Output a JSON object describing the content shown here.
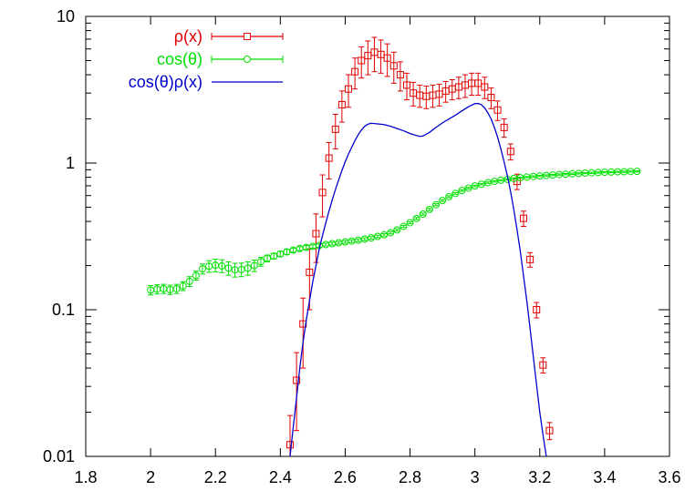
{
  "chart_data": {
    "type": "line",
    "title": "",
    "xlabel": "",
    "ylabel": "",
    "xlim": [
      1.8,
      3.6
    ],
    "ylim": [
      0.01,
      10
    ],
    "yscale": "log",
    "grid": false,
    "legend_position": "top-left",
    "x_ticks": [
      {
        "value": 1.8,
        "label": "1.8"
      },
      {
        "value": 2.0,
        "label": "2"
      },
      {
        "value": 2.2,
        "label": "2.2"
      },
      {
        "value": 2.4,
        "label": "2.4"
      },
      {
        "value": 2.6,
        "label": "2.6"
      },
      {
        "value": 2.8,
        "label": "2.8"
      },
      {
        "value": 3.0,
        "label": "3"
      },
      {
        "value": 3.2,
        "label": "3.2"
      },
      {
        "value": 3.4,
        "label": "3.4"
      },
      {
        "value": 3.6,
        "label": "3.6"
      }
    ],
    "y_ticks": [
      {
        "value": 0.01,
        "label": "0.01"
      },
      {
        "value": 0.1,
        "label": "0.1"
      },
      {
        "value": 1,
        "label": "1"
      },
      {
        "value": 10,
        "label": "10"
      }
    ],
    "series": [
      {
        "name": "ρ(x)",
        "color": "#e00000",
        "marker": "square",
        "points": [
          [
            2.43,
            0.012,
            0.007
          ],
          [
            2.45,
            0.033,
            0.018
          ],
          [
            2.47,
            0.08,
            0.04
          ],
          [
            2.49,
            0.18,
            0.08
          ],
          [
            2.51,
            0.33,
            0.12
          ],
          [
            2.53,
            0.63,
            0.2
          ],
          [
            2.55,
            1.08,
            0.3
          ],
          [
            2.57,
            1.7,
            0.45
          ],
          [
            2.59,
            2.5,
            0.6
          ],
          [
            2.61,
            3.2,
            0.8
          ],
          [
            2.63,
            4.2,
            1.0
          ],
          [
            2.65,
            5.0,
            1.2
          ],
          [
            2.67,
            5.4,
            1.4
          ],
          [
            2.69,
            5.7,
            1.5
          ],
          [
            2.71,
            5.5,
            1.4
          ],
          [
            2.73,
            5.2,
            1.3
          ],
          [
            2.75,
            4.6,
            1.1
          ],
          [
            2.77,
            4.0,
            0.9
          ],
          [
            2.79,
            3.4,
            0.7
          ],
          [
            2.81,
            3.0,
            0.55
          ],
          [
            2.83,
            2.9,
            0.5
          ],
          [
            2.85,
            2.85,
            0.5
          ],
          [
            2.87,
            2.9,
            0.5
          ],
          [
            2.89,
            2.95,
            0.5
          ],
          [
            2.91,
            3.1,
            0.5
          ],
          [
            2.93,
            3.2,
            0.5
          ],
          [
            2.95,
            3.3,
            0.55
          ],
          [
            2.97,
            3.4,
            0.6
          ],
          [
            2.99,
            3.5,
            0.6
          ],
          [
            3.01,
            3.5,
            0.6
          ],
          [
            3.03,
            3.3,
            0.55
          ],
          [
            3.05,
            2.8,
            0.45
          ],
          [
            3.07,
            2.3,
            0.35
          ],
          [
            3.09,
            1.75,
            0.25
          ],
          [
            3.11,
            1.2,
            0.15
          ],
          [
            3.13,
            0.75,
            0.09
          ],
          [
            3.15,
            0.42,
            0.05
          ],
          [
            3.17,
            0.22,
            0.025
          ],
          [
            3.19,
            0.1,
            0.012
          ],
          [
            3.21,
            0.042,
            0.005
          ],
          [
            3.23,
            0.015,
            0.002
          ]
        ]
      },
      {
        "name": "cos(θ)",
        "color": "#00e000",
        "marker": "circle",
        "points": [
          [
            2.0,
            0.136,
            0.01
          ],
          [
            2.02,
            0.138,
            0.01
          ],
          [
            2.04,
            0.139,
            0.01
          ],
          [
            2.06,
            0.137,
            0.01
          ],
          [
            2.08,
            0.139,
            0.01
          ],
          [
            2.1,
            0.145,
            0.01
          ],
          [
            2.12,
            0.156,
            0.012
          ],
          [
            2.14,
            0.171,
            0.012
          ],
          [
            2.16,
            0.19,
            0.015
          ],
          [
            2.18,
            0.198,
            0.018
          ],
          [
            2.2,
            0.201,
            0.02
          ],
          [
            2.22,
            0.199,
            0.02
          ],
          [
            2.24,
            0.192,
            0.02
          ],
          [
            2.26,
            0.187,
            0.02
          ],
          [
            2.28,
            0.188,
            0.02
          ],
          [
            2.3,
            0.192,
            0.02
          ],
          [
            2.32,
            0.2,
            0.018
          ],
          [
            2.34,
            0.213,
            0.015
          ],
          [
            2.36,
            0.224,
            0.012
          ],
          [
            2.38,
            0.232,
            0.01
          ],
          [
            2.4,
            0.24,
            0.01
          ],
          [
            2.42,
            0.248,
            0.01
          ],
          [
            2.44,
            0.255,
            0.008
          ],
          [
            2.46,
            0.261,
            0.008
          ],
          [
            2.48,
            0.266,
            0.008
          ],
          [
            2.5,
            0.27,
            0.007
          ],
          [
            2.52,
            0.274,
            0.007
          ],
          [
            2.54,
            0.278,
            0.006
          ],
          [
            2.56,
            0.282,
            0.006
          ],
          [
            2.58,
            0.286,
            0.006
          ],
          [
            2.6,
            0.29,
            0.006
          ],
          [
            2.62,
            0.294,
            0.006
          ],
          [
            2.64,
            0.298,
            0.006
          ],
          [
            2.66,
            0.303,
            0.006
          ],
          [
            2.68,
            0.309,
            0.006
          ],
          [
            2.7,
            0.316,
            0.006
          ],
          [
            2.72,
            0.324,
            0.006
          ],
          [
            2.74,
            0.335,
            0.006
          ],
          [
            2.76,
            0.35,
            0.006
          ],
          [
            2.78,
            0.37,
            0.006
          ],
          [
            2.8,
            0.392,
            0.006
          ],
          [
            2.82,
            0.419,
            0.007
          ],
          [
            2.84,
            0.449,
            0.007
          ],
          [
            2.86,
            0.483,
            0.008
          ],
          [
            2.88,
            0.52,
            0.008
          ],
          [
            2.9,
            0.555,
            0.008
          ],
          [
            2.92,
            0.59,
            0.008
          ],
          [
            2.94,
            0.62,
            0.008
          ],
          [
            2.96,
            0.65,
            0.008
          ],
          [
            2.98,
            0.675,
            0.008
          ],
          [
            3.0,
            0.698,
            0.008
          ],
          [
            3.02,
            0.717,
            0.008
          ],
          [
            3.04,
            0.735,
            0.008
          ],
          [
            3.06,
            0.75,
            0.008
          ],
          [
            3.08,
            0.763,
            0.008
          ],
          [
            3.1,
            0.775,
            0.008
          ],
          [
            3.12,
            0.785,
            0.008
          ],
          [
            3.14,
            0.794,
            0.008
          ],
          [
            3.16,
            0.802,
            0.008
          ],
          [
            3.18,
            0.81,
            0.008
          ],
          [
            3.2,
            0.817,
            0.008
          ],
          [
            3.22,
            0.823,
            0.008
          ],
          [
            3.24,
            0.829,
            0.008
          ],
          [
            3.26,
            0.835,
            0.008
          ],
          [
            3.28,
            0.84,
            0.008
          ],
          [
            3.3,
            0.845,
            0.008
          ],
          [
            3.32,
            0.85,
            0.008
          ],
          [
            3.34,
            0.854,
            0.008
          ],
          [
            3.36,
            0.858,
            0.008
          ],
          [
            3.38,
            0.862,
            0.008
          ],
          [
            3.4,
            0.865,
            0.008
          ],
          [
            3.42,
            0.868,
            0.008
          ],
          [
            3.44,
            0.871,
            0.008
          ],
          [
            3.46,
            0.873,
            0.008
          ],
          [
            3.48,
            0.875,
            0.008
          ],
          [
            3.5,
            0.877,
            0.008
          ]
        ]
      },
      {
        "name": "cos(θ)ρ(x)",
        "color": "#0000cc",
        "marker": "none",
        "points": [
          [
            2.43,
            0.01
          ],
          [
            2.44,
            0.016
          ],
          [
            2.45,
            0.025
          ],
          [
            2.46,
            0.04
          ],
          [
            2.47,
            0.06
          ],
          [
            2.48,
            0.085
          ],
          [
            2.49,
            0.115
          ],
          [
            2.5,
            0.155
          ],
          [
            2.51,
            0.2
          ],
          [
            2.52,
            0.26
          ],
          [
            2.53,
            0.32
          ],
          [
            2.54,
            0.39
          ],
          [
            2.55,
            0.47
          ],
          [
            2.56,
            0.56
          ],
          [
            2.57,
            0.66
          ],
          [
            2.58,
            0.77
          ],
          [
            2.59,
            0.89
          ],
          [
            2.6,
            1.02
          ],
          [
            2.61,
            1.15
          ],
          [
            2.62,
            1.28
          ],
          [
            2.63,
            1.42
          ],
          [
            2.64,
            1.56
          ],
          [
            2.65,
            1.68
          ],
          [
            2.66,
            1.78
          ],
          [
            2.67,
            1.84
          ],
          [
            2.68,
            1.87
          ],
          [
            2.69,
            1.86
          ],
          [
            2.7,
            1.85
          ],
          [
            2.72,
            1.83
          ],
          [
            2.74,
            1.78
          ],
          [
            2.76,
            1.72
          ],
          [
            2.78,
            1.66
          ],
          [
            2.8,
            1.59
          ],
          [
            2.82,
            1.54
          ],
          [
            2.83,
            1.52
          ],
          [
            2.84,
            1.53
          ],
          [
            2.86,
            1.62
          ],
          [
            2.88,
            1.75
          ],
          [
            2.9,
            1.88
          ],
          [
            2.92,
            2.0
          ],
          [
            2.94,
            2.12
          ],
          [
            2.96,
            2.27
          ],
          [
            2.98,
            2.42
          ],
          [
            3.0,
            2.54
          ],
          [
            3.01,
            2.55
          ],
          [
            3.02,
            2.5
          ],
          [
            3.03,
            2.38
          ],
          [
            3.04,
            2.2
          ],
          [
            3.05,
            2.0
          ],
          [
            3.06,
            1.75
          ],
          [
            3.07,
            1.5
          ],
          [
            3.08,
            1.25
          ],
          [
            3.09,
            1.02
          ],
          [
            3.1,
            0.82
          ],
          [
            3.11,
            0.64
          ],
          [
            3.12,
            0.48
          ],
          [
            3.13,
            0.35
          ],
          [
            3.14,
            0.25
          ],
          [
            3.15,
            0.17
          ],
          [
            3.16,
            0.115
          ],
          [
            3.17,
            0.075
          ],
          [
            3.18,
            0.048
          ],
          [
            3.19,
            0.031
          ],
          [
            3.2,
            0.02
          ],
          [
            3.21,
            0.014
          ],
          [
            3.22,
            0.01
          ]
        ]
      }
    ]
  }
}
